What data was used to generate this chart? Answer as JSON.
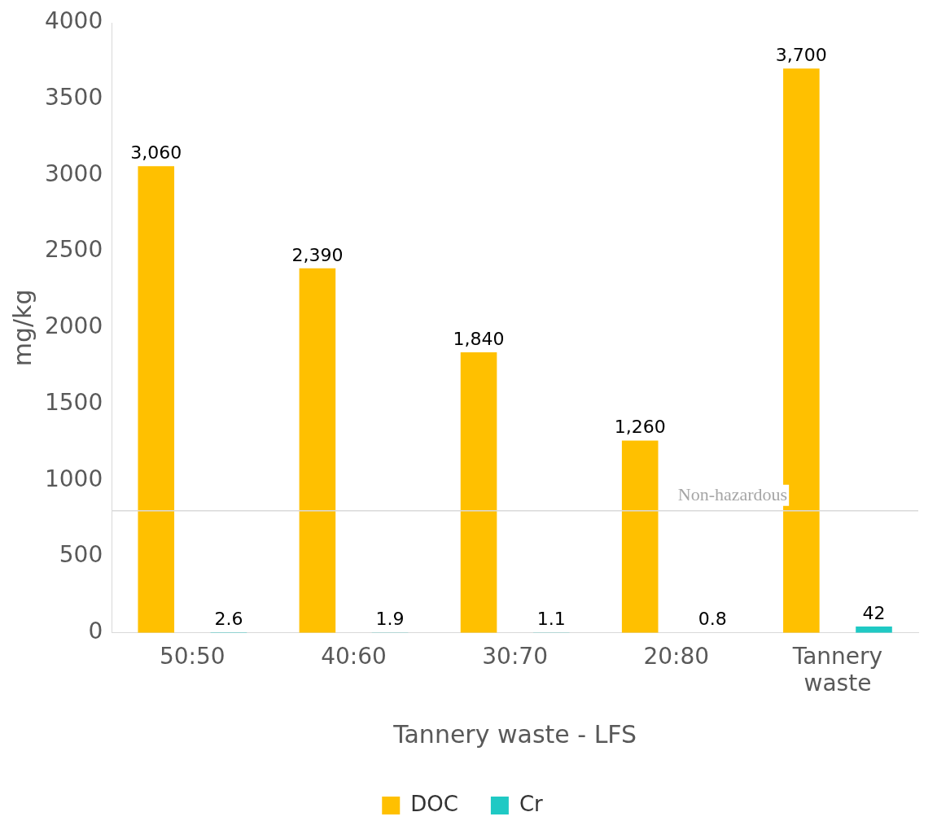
{
  "chart_data": {
    "type": "bar",
    "xlabel": "Tannery waste - LFS",
    "ylabel": "mg/kg",
    "categories": [
      "50:50",
      "40:60",
      "30:70",
      "20:80",
      "Tannery waste"
    ],
    "series": [
      {
        "name": "DOC",
        "color": "#ffc000",
        "values": [
          3060,
          2390,
          1840,
          1260,
          3700
        ],
        "value_labels": [
          "3,060",
          "2,390",
          "1,840",
          "1,260",
          "3,700"
        ]
      },
      {
        "name": "Cr",
        "color": "#1fc9c4",
        "values": [
          2.6,
          1.9,
          1.1,
          0.8,
          42
        ],
        "value_labels": [
          "2.6",
          "1.9",
          "1.1",
          "0.8",
          "42"
        ]
      }
    ],
    "ylim": [
      0,
      4000
    ],
    "yticks": [
      0,
      500,
      1000,
      1500,
      2000,
      2500,
      3000,
      3500,
      4000
    ],
    "ref_lines": [
      {
        "axis": "y",
        "value": 800,
        "label": "Non-hazardous",
        "color": "#d9d9d9"
      }
    ],
    "grid": false,
    "legend": "bottom"
  }
}
